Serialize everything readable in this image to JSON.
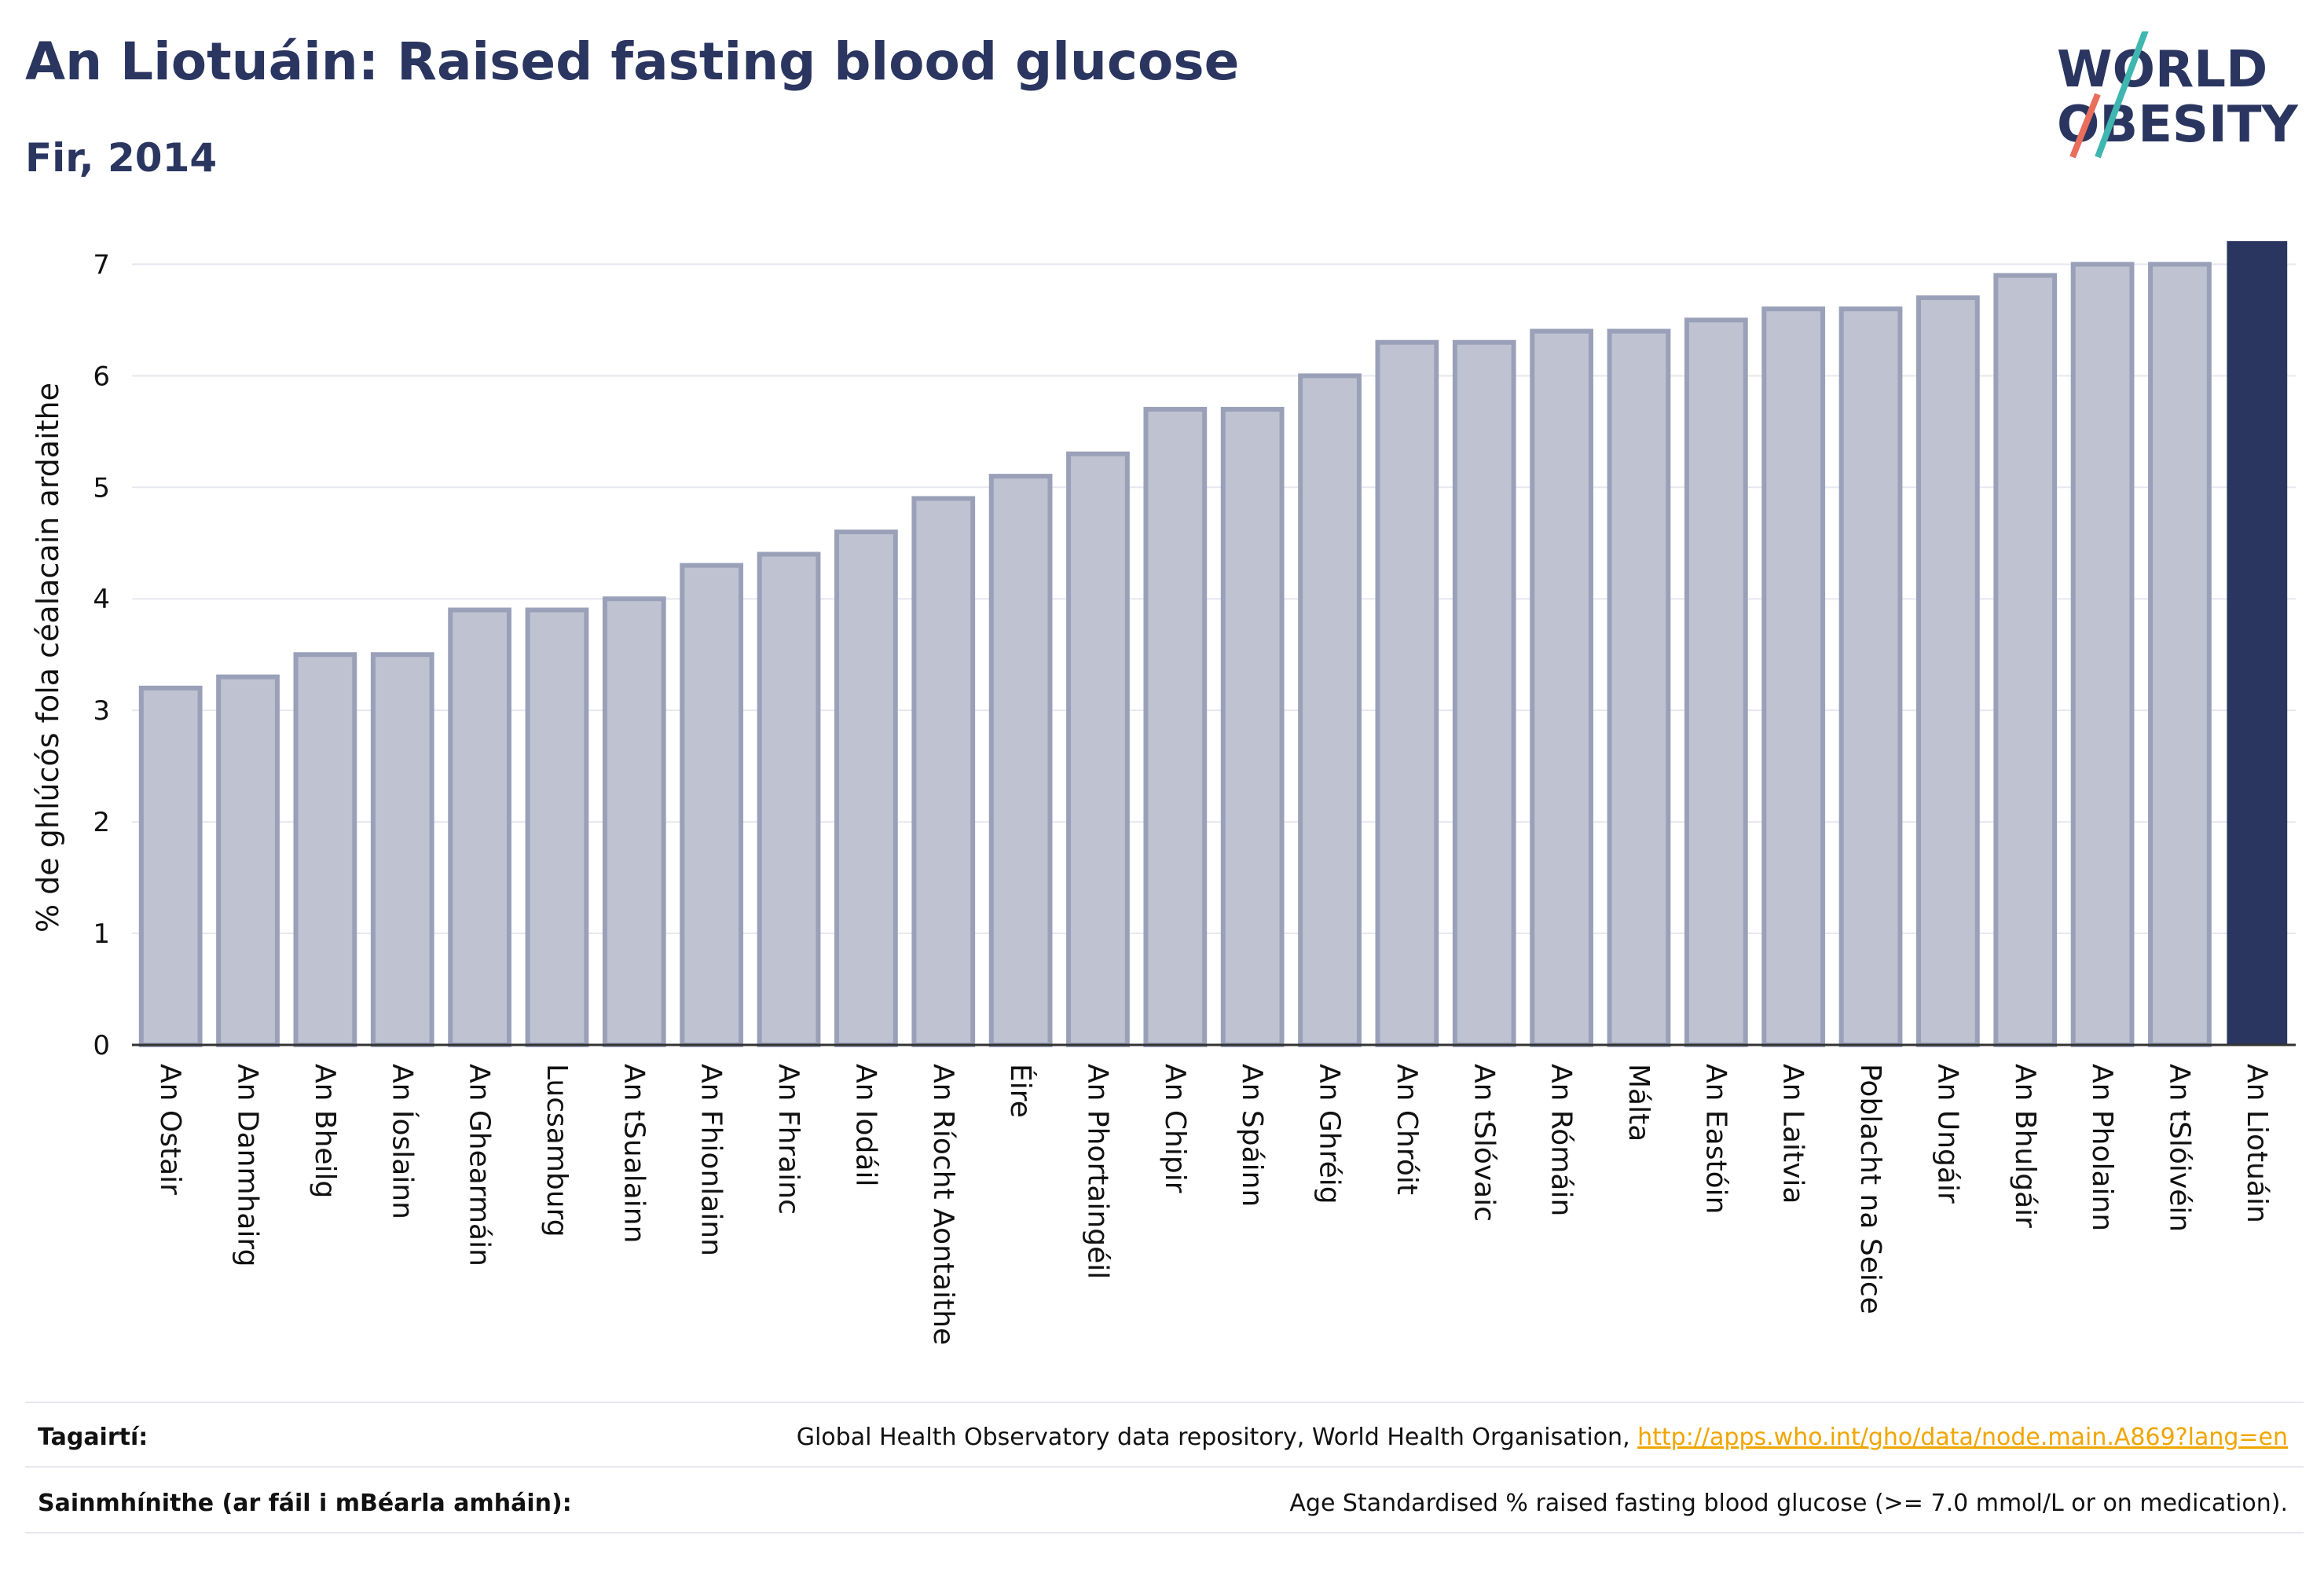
{
  "header": {
    "title": "An Liotuáin: Raised fasting blood glucose",
    "subtitle": "Fir, 2014"
  },
  "logo": {
    "line1": "WORLD",
    "line2": "OBESITY"
  },
  "colors": {
    "highlight": "#2a3560",
    "bar_fill": "#bfc3d1",
    "bar_stroke": "#9aa0b8",
    "grid": "#e6e8ef",
    "text": "#111111",
    "logo_accent_1": "#3fb7b0",
    "logo_accent_2": "#ea6e5c"
  },
  "chart_data": {
    "type": "bar",
    "ylabel": "% de ghlúcós fola céalacain ardaithe",
    "xlabel": "",
    "ylim": [
      0,
      7.2
    ],
    "yticks": [
      0,
      1,
      2,
      3,
      4,
      5,
      6,
      7
    ],
    "grid": true,
    "highlight_category": "An Liotuáin",
    "categories": [
      "An Ostair",
      "An Danmhairg",
      "An Bheilg",
      "An Íoslainn",
      "An Ghearmáin",
      "Lucsamburg",
      "An tSualainn",
      "An Fhionlainn",
      "An Fhrainc",
      "An Iodáil",
      "An Ríocht Aontaithe",
      "Éire",
      "An Phortaingéil",
      "An Chipir",
      "An Spáinn",
      "An Ghréig",
      "An Chróit",
      "An tSlóvaic",
      "An Rómáin",
      "Málta",
      "An Eastóin",
      "An Laitvia",
      "Poblacht na Seice",
      "An Ungáir",
      "An Bhulgáir",
      "An Pholainn",
      "An tSlóivéin",
      "An Liotuáin"
    ],
    "values": [
      3.2,
      3.3,
      3.5,
      3.5,
      3.9,
      3.9,
      4.0,
      4.3,
      4.4,
      4.6,
      4.9,
      5.1,
      5.3,
      5.7,
      5.7,
      6.0,
      6.3,
      6.3,
      6.4,
      6.4,
      6.5,
      6.6,
      6.6,
      6.7,
      6.9,
      7.0,
      7.0,
      7.2
    ]
  },
  "footer": {
    "references_label": "Tagairtí:",
    "references_text": "Global Health Observatory data repository, World Health Organisation, ",
    "references_link": "http://apps.who.int/gho/data/node.main.A869?lang=en",
    "definitions_label": "Sainmhínithe (ar fáil i mBéarla amháin):",
    "definitions_text": "Age Standardised % raised fasting blood glucose (>= 7.0 mmol/L or on medication)."
  }
}
